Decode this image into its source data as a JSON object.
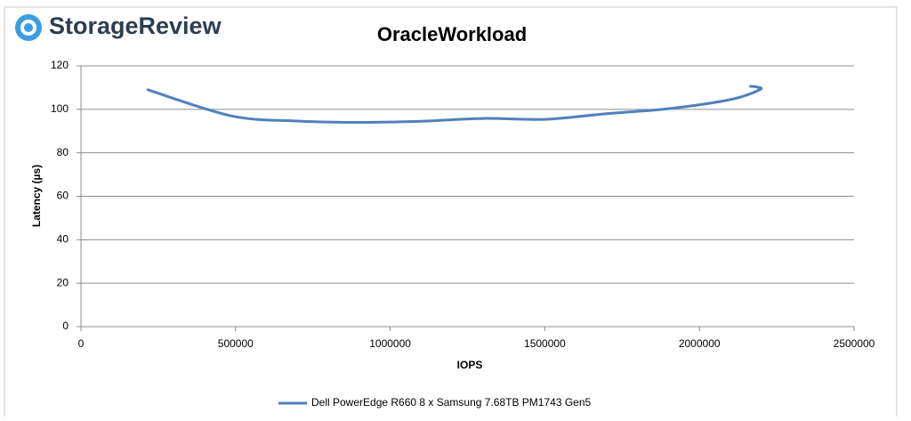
{
  "logo": "StorageReview",
  "chart_data": {
    "type": "line",
    "title": "OracleWorkload",
    "x_label": "IOPS",
    "y_label": "Latency (µs)",
    "xlim": [
      0,
      2500000
    ],
    "xticks": [
      0,
      500000,
      1000000,
      1500000,
      2000000,
      2500000
    ],
    "ylim": [
      0,
      120
    ],
    "yticks": [
      0,
      20,
      40,
      60,
      80,
      100,
      120
    ],
    "grid": true,
    "legend": "bottom",
    "series": [
      {
        "name": "Dell PowerEdge R660 8 x Samsung 7.68TB PM1743 Gen5",
        "color": "#4f81bd",
        "x": [
          216000,
          486000,
          700000,
          900000,
          1100000,
          1300000,
          1500000,
          1700000,
          1900000,
          2100000,
          2195000,
          2185000,
          2165000
        ],
        "values": [
          109,
          97,
          94.6,
          94,
          94.5,
          95.8,
          95.4,
          98,
          100.3,
          104.5,
          109,
          110.3,
          110.6
        ]
      }
    ]
  }
}
